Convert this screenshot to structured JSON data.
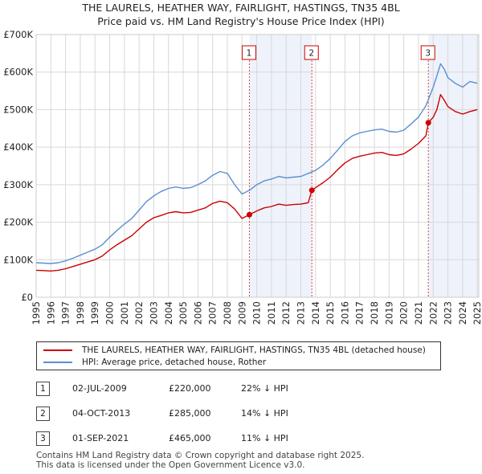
{
  "titles": {
    "line1": "THE LAURELS, HEATHER WAY, FAIRLIGHT, HASTINGS, TN35 4BL",
    "line2": "Price paid vs. HM Land Registry's House Price Index (HPI)"
  },
  "colors": {
    "property": "#cc0000",
    "hpi": "#5b8fd0",
    "shade": "#eef2fb",
    "grid": "#d8d8d8"
  },
  "legend": {
    "property": "THE LAURELS, HEATHER WAY, FAIRLIGHT, HASTINGS, TN35 4BL (detached house)",
    "hpi": "HPI: Average price, detached house, Rother"
  },
  "transactions": [
    {
      "num": "1",
      "date": "02-JUL-2009",
      "price": "£220,000",
      "hpi": "22% ↓ HPI"
    },
    {
      "num": "2",
      "date": "04-OCT-2013",
      "price": "£285,000",
      "hpi": "14% ↓ HPI"
    },
    {
      "num": "3",
      "date": "01-SEP-2021",
      "price": "£465,000",
      "hpi": "11% ↓ HPI"
    }
  ],
  "footer": {
    "line1": "Contains HM Land Registry data © Crown copyright and database right 2025.",
    "line2": "This data is licensed under the Open Government Licence v3.0."
  },
  "chart_data": {
    "type": "line",
    "title": "THE LAURELS, HEATHER WAY, FAIRLIGHT, HASTINGS, TN35 4BL — Price paid vs. HM Land Registry's House Price Index (HPI)",
    "xlabel": "",
    "ylabel": "",
    "xlim": [
      1995,
      2025.1
    ],
    "ylim": [
      0,
      700000
    ],
    "yticks": [
      0,
      100000,
      200000,
      300000,
      400000,
      500000,
      600000,
      700000
    ],
    "ytick_labels": [
      "£0",
      "£100K",
      "£200K",
      "£300K",
      "£400K",
      "£500K",
      "£600K",
      "£700K"
    ],
    "xticks": [
      1995,
      1996,
      1997,
      1998,
      1999,
      2000,
      2001,
      2002,
      2003,
      2004,
      2005,
      2006,
      2007,
      2008,
      2009,
      2010,
      2011,
      2012,
      2013,
      2014,
      2015,
      2016,
      2017,
      2018,
      2019,
      2020,
      2021,
      2022,
      2023,
      2024,
      2025
    ],
    "grid": true,
    "shaded_ranges": [
      [
        2009.5,
        2013.75
      ],
      [
        2021.67,
        2025.1
      ]
    ],
    "sale_markers": [
      {
        "label": "1",
        "x": 2009.5,
        "y": 220000
      },
      {
        "label": "2",
        "x": 2013.75,
        "y": 285000
      },
      {
        "label": "3",
        "x": 2021.67,
        "y": 465000
      }
    ],
    "series": [
      {
        "name": "THE LAURELS, HEATHER WAY, FAIRLIGHT, HASTINGS, TN35 4BL (detached house)",
        "color": "#cc0000",
        "x": [
          1995,
          1995.5,
          1996,
          1996.5,
          1997,
          1997.5,
          1998,
          1998.5,
          1999,
          1999.5,
          2000,
          2000.5,
          2001,
          2001.5,
          2002,
          2002.5,
          2003,
          2003.5,
          2004,
          2004.5,
          2005,
          2005.5,
          2006,
          2006.5,
          2007,
          2007.5,
          2008,
          2008.5,
          2009,
          2009.5,
          2010,
          2010.5,
          2011,
          2011.5,
          2012,
          2012.5,
          2013,
          2013.5,
          2013.75,
          2014,
          2014.5,
          2015,
          2015.5,
          2016,
          2016.5,
          2017,
          2017.5,
          2018,
          2018.5,
          2019,
          2019.5,
          2020,
          2020.5,
          2021,
          2021.5,
          2021.67,
          2022,
          2022.25,
          2022.5,
          2022.75,
          2023,
          2023.5,
          2024,
          2024.5,
          2025
        ],
        "y": [
          72000,
          71000,
          70000,
          72000,
          76000,
          82000,
          88000,
          94000,
          100000,
          110000,
          126000,
          140000,
          152000,
          164000,
          182000,
          200000,
          212000,
          218000,
          225000,
          228000,
          225000,
          226000,
          232000,
          238000,
          250000,
          256000,
          252000,
          235000,
          210000,
          220000,
          230000,
          238000,
          242000,
          248000,
          245000,
          247000,
          248000,
          252000,
          285000,
          292000,
          305000,
          320000,
          340000,
          358000,
          370000,
          376000,
          380000,
          384000,
          386000,
          380000,
          378000,
          382000,
          395000,
          410000,
          430000,
          465000,
          480000,
          500000,
          540000,
          525000,
          508000,
          495000,
          488000,
          495000,
          500000
        ]
      },
      {
        "name": "HPI: Average price, detached house, Rother",
        "color": "#5b8fd0",
        "x": [
          1995,
          1995.5,
          1996,
          1996.5,
          1997,
          1997.5,
          1998,
          1998.5,
          1999,
          1999.5,
          2000,
          2000.5,
          2001,
          2001.5,
          2002,
          2002.5,
          2003,
          2003.5,
          2004,
          2004.5,
          2005,
          2005.5,
          2006,
          2006.5,
          2007,
          2007.5,
          2008,
          2008.5,
          2009,
          2009.5,
          2010,
          2010.5,
          2011,
          2011.5,
          2012,
          2012.5,
          2013,
          2013.5,
          2014,
          2014.5,
          2015,
          2015.5,
          2016,
          2016.5,
          2017,
          2017.5,
          2018,
          2018.5,
          2019,
          2019.5,
          2020,
          2020.5,
          2021,
          2021.5,
          2022,
          2022.25,
          2022.5,
          2022.75,
          2023,
          2023.5,
          2024,
          2024.5,
          2025
        ],
        "y": [
          92000,
          91000,
          90000,
          92000,
          97000,
          104000,
          112000,
          120000,
          128000,
          140000,
          160000,
          178000,
          195000,
          210000,
          232000,
          255000,
          270000,
          282000,
          290000,
          294000,
          290000,
          292000,
          300000,
          310000,
          325000,
          335000,
          330000,
          300000,
          275000,
          285000,
          300000,
          310000,
          315000,
          322000,
          318000,
          320000,
          322000,
          330000,
          338000,
          352000,
          370000,
          392000,
          415000,
          430000,
          438000,
          442000,
          446000,
          448000,
          442000,
          440000,
          445000,
          462000,
          480000,
          510000,
          560000,
          590000,
          622000,
          608000,
          585000,
          570000,
          560000,
          575000,
          570000
        ]
      }
    ]
  }
}
